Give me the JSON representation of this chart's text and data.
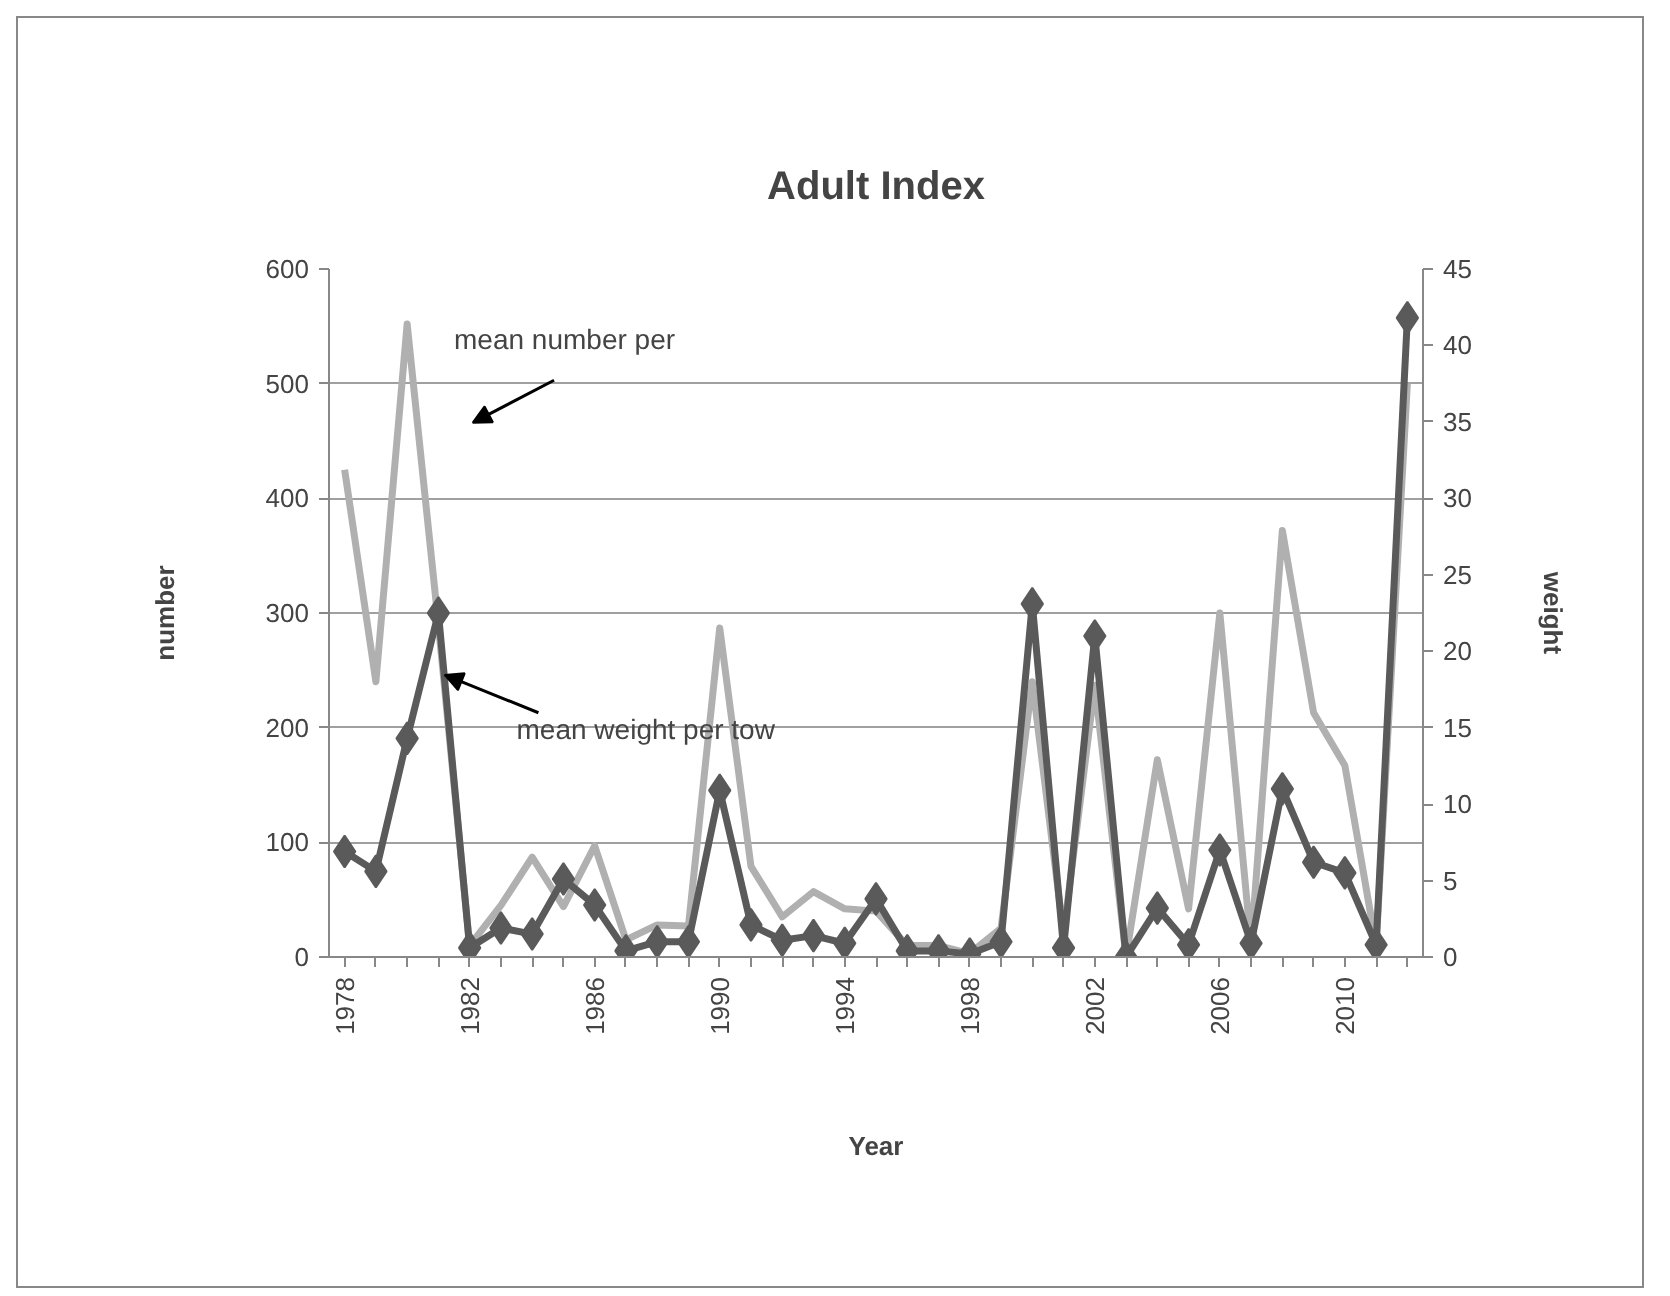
{
  "chart_data": {
    "type": "line",
    "title": "Adult Index",
    "xlabel": "Year",
    "ylabel": "number",
    "y2label": "weight",
    "x": [
      1978,
      1979,
      1980,
      1981,
      1982,
      1983,
      1984,
      1985,
      1986,
      1987,
      1988,
      1989,
      1990,
      1991,
      1992,
      1993,
      1994,
      1995,
      1996,
      1997,
      1998,
      1999,
      2000,
      2001,
      2002,
      2003,
      2004,
      2005,
      2006,
      2007,
      2008,
      2009,
      2010,
      2011,
      2012
    ],
    "series": [
      {
        "color": "#b0b0b0",
        "marker": "none",
        "values": [
          425,
          240,
          552,
          290,
          10,
          45,
          87,
          44,
          97,
          15,
          28,
          27,
          287,
          79,
          35,
          57,
          42,
          40,
          10,
          10,
          3,
          25,
          240,
          20,
          237,
          0,
          172,
          42,
          300,
          10,
          372,
          213,
          167,
          10,
          500
        ]
      },
      {
        "color": "#5a5a5a",
        "marker": "diamond",
        "axis": "y2",
        "values": [
          6.9,
          5.6,
          14.3,
          22.5,
          0.6,
          1.9,
          1.5,
          5.1,
          3.4,
          0.4,
          1.0,
          1.0,
          10.9,
          2.1,
          1.1,
          1.4,
          0.9,
          3.8,
          0.4,
          0.4,
          0.2,
          1.0,
          23.1,
          0.6,
          21,
          0,
          3.2,
          0.8,
          7,
          0.9,
          11,
          6.2,
          5.5,
          0.8,
          41.8
        ]
      }
    ],
    "xlim": [
      1977.5,
      2012.5
    ],
    "xticks": [
      1978,
      {
        "value": 1979,
        "label": null
      },
      {
        "value": 1980,
        "label": null
      },
      {
        "value": 1981,
        "label": null
      },
      1982,
      {
        "value": 1983,
        "label": null
      },
      {
        "value": 1984,
        "label": null
      },
      {
        "value": 1985,
        "label": null
      },
      1986,
      {
        "value": 1987,
        "label": null
      },
      {
        "value": 1988,
        "label": null
      },
      {
        "value": 1989,
        "label": null
      },
      1990,
      {
        "value": 1991,
        "label": null
      },
      {
        "value": 1992,
        "label": null
      },
      {
        "value": 1993,
        "label": null
      },
      1994,
      {
        "value": 1995,
        "label": null
      },
      {
        "value": 1996,
        "label": null
      },
      {
        "value": 1997,
        "label": null
      },
      1998,
      {
        "value": 1999,
        "label": null
      },
      {
        "value": 2000,
        "label": null
      },
      {
        "value": 2001,
        "label": null
      },
      2002,
      {
        "value": 2003,
        "label": null
      },
      {
        "value": 2004,
        "label": null
      },
      {
        "value": 2005,
        "label": null
      },
      2006,
      {
        "value": 2007,
        "label": null
      },
      {
        "value": 2008,
        "label": null
      },
      {
        "value": 2009,
        "label": null
      },
      2010,
      {
        "value": 2011,
        "label": null
      },
      {
        "value": 2012,
        "label": null
      }
    ],
    "ylim": [
      0,
      600
    ],
    "yticks": [
      0,
      100,
      200,
      300,
      400,
      500,
      600
    ],
    "y2lim": [
      0,
      45
    ],
    "y2ticks": [
      0,
      5,
      10,
      15,
      20,
      25,
      30,
      35,
      40,
      45
    ],
    "grid": "y",
    "annotations": [
      "mean number per",
      {
        "text": "mean weight per tow",
        "x": 1981.2,
        "y": 246
      }
    ]
  }
}
